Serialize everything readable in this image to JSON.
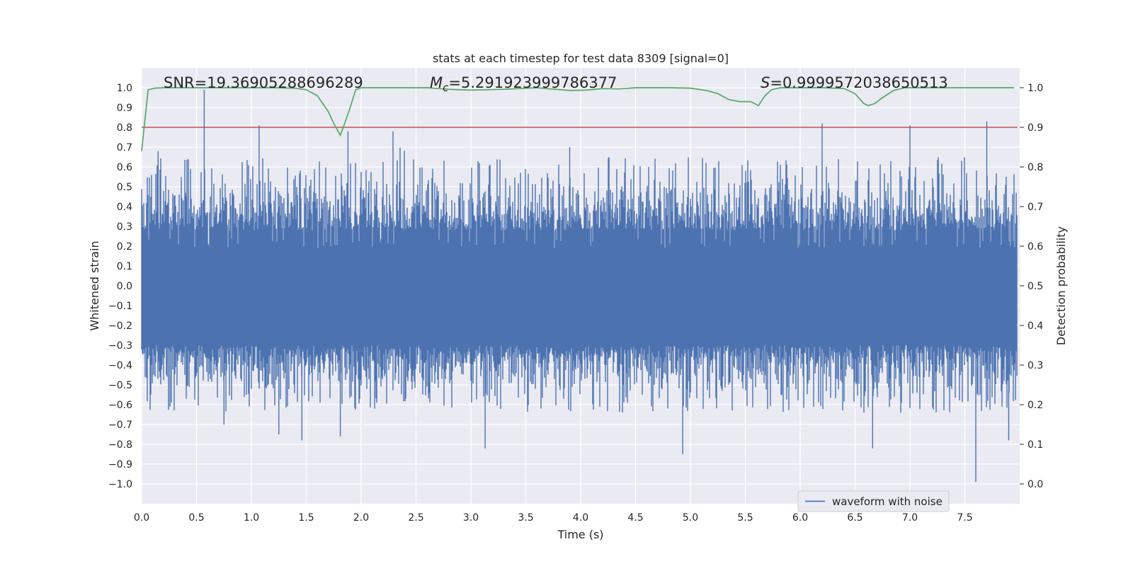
{
  "chart_data": {
    "type": "line",
    "title": "stats at each timestep for test data 8309 [signal=0]",
    "xlabel": "Time (s)",
    "ylabel": "Whitened strain",
    "ylabel_right": "Detection probability",
    "xlim": [
      0.0,
      8.0
    ],
    "ylim": [
      -1.1,
      1.1
    ],
    "ylim_right": [
      -0.05,
      1.05
    ],
    "x_ticks": [
      "0.0",
      "0.5",
      "1.0",
      "1.5",
      "2.0",
      "2.5",
      "3.0",
      "3.5",
      "4.0",
      "4.5",
      "5.0",
      "5.5",
      "6.0",
      "6.5",
      "7.0",
      "7.5"
    ],
    "y_ticks": [
      "1.0",
      "0.9",
      "0.8",
      "0.7",
      "0.6",
      "0.5",
      "0.4",
      "0.3",
      "0.2",
      "0.1",
      "0.0",
      "−0.1",
      "−0.2",
      "−0.3",
      "−0.4",
      "−0.5",
      "−0.6",
      "−0.7",
      "−0.8",
      "−0.9",
      "−1.0"
    ],
    "y_ticks_right": [
      "1.0",
      "0.9",
      "0.8",
      "0.7",
      "0.6",
      "0.5",
      "0.4",
      "0.3",
      "0.2",
      "0.1",
      "0.0"
    ],
    "annotations": {
      "snr": "SNR=19.36905288696289",
      "mc_symbol": "M",
      "mc_sub": "c",
      "mc_value": "=5.291923999786377",
      "s_symbol": "S",
      "s_value": "=0.9999572038650513"
    },
    "threshold": {
      "name": "threshold",
      "value": 0.9,
      "color": "#c44e52"
    },
    "series": [
      {
        "name": "waveform with noise",
        "color": "#4c72b0",
        "axis": "left",
        "envelope_seed": 8309,
        "peaks": [
          {
            "x": 0.57,
            "y": 0.99
          },
          {
            "x": 1.07,
            "y": 0.81
          },
          {
            "x": 1.88,
            "y": 0.78
          },
          {
            "x": 2.29,
            "y": 0.78
          },
          {
            "x": 6.2,
            "y": 0.82
          },
          {
            "x": 7.0,
            "y": 0.81
          },
          {
            "x": 7.7,
            "y": 0.83
          },
          {
            "x": 0.15,
            "y": 0.68
          },
          {
            "x": 3.9,
            "y": 0.7
          }
        ],
        "troughs": [
          {
            "x": 7.6,
            "y": -0.99
          },
          {
            "x": 4.93,
            "y": -0.85
          },
          {
            "x": 3.13,
            "y": -0.82
          },
          {
            "x": 6.66,
            "y": -0.82
          },
          {
            "x": 1.46,
            "y": -0.78
          },
          {
            "x": 1.81,
            "y": -0.76
          },
          {
            "x": 1.25,
            "y": -0.75
          },
          {
            "x": 0.75,
            "y": -0.7
          },
          {
            "x": 7.9,
            "y": -0.78
          }
        ]
      },
      {
        "name": "detection probability",
        "color": "#55a868",
        "axis": "right",
        "x": [
          0.0,
          0.03,
          0.06,
          0.12,
          0.2,
          0.4,
          0.8,
          1.2,
          1.4,
          1.5,
          1.6,
          1.7,
          1.75,
          1.81,
          1.85,
          1.9,
          1.95,
          2.0,
          2.3,
          2.6,
          2.8,
          3.0,
          3.3,
          3.6,
          3.9,
          4.05,
          4.2,
          4.35,
          4.5,
          4.8,
          5.0,
          5.15,
          5.25,
          5.35,
          5.45,
          5.55,
          5.62,
          5.68,
          5.74,
          5.82,
          6.0,
          6.2,
          6.4,
          6.5,
          6.58,
          6.62,
          6.68,
          6.75,
          6.85,
          6.95,
          7.1,
          7.5,
          7.95
        ],
        "y": [
          0.84,
          0.92,
          0.995,
          0.999,
          1.0,
          1.0,
          1.0,
          1.0,
          0.999,
          0.995,
          0.98,
          0.94,
          0.91,
          0.88,
          0.91,
          0.95,
          0.995,
          1.0,
          1.0,
          1.0,
          0.996,
          0.994,
          0.996,
          1.0,
          0.993,
          0.994,
          0.998,
          0.997,
          1.0,
          1.0,
          0.999,
          0.993,
          0.985,
          0.97,
          0.965,
          0.965,
          0.955,
          0.98,
          0.995,
          1.0,
          1.0,
          1.0,
          0.998,
          0.985,
          0.96,
          0.955,
          0.96,
          0.975,
          0.993,
          1.0,
          1.0,
          1.0,
          1.0
        ]
      }
    ],
    "legend": {
      "location": "lower-right",
      "entries": [
        "waveform with noise"
      ]
    },
    "grid": true
  }
}
